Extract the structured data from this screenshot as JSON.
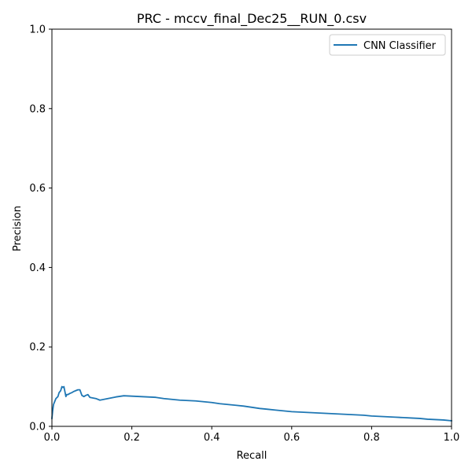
{
  "chart_data": {
    "type": "line",
    "title": "PRC - mccv_final_Dec25__RUN_0.csv",
    "xlabel": "Recall",
    "ylabel": "Precision",
    "xlim": [
      0,
      1
    ],
    "ylim": [
      0,
      1
    ],
    "xticks": [
      "0.0",
      "0.2",
      "0.4",
      "0.6",
      "0.8",
      "1.0"
    ],
    "yticks": [
      "0.0",
      "0.2",
      "0.4",
      "0.6",
      "0.8",
      "1.0"
    ],
    "grid": false,
    "legend_position": "top-right",
    "series": [
      {
        "name": "CNN Classifier",
        "color": "#1f77b4",
        "x": [
          0.0,
          0.002,
          0.004,
          0.006,
          0.008,
          0.01,
          0.012,
          0.015,
          0.018,
          0.022,
          0.025,
          0.028,
          0.03,
          0.032,
          0.035,
          0.037,
          0.04,
          0.045,
          0.05,
          0.055,
          0.06,
          0.065,
          0.07,
          0.075,
          0.08,
          0.085,
          0.09,
          0.095,
          0.1,
          0.11,
          0.12,
          0.14,
          0.16,
          0.18,
          0.2,
          0.22,
          0.24,
          0.26,
          0.28,
          0.3,
          0.32,
          0.34,
          0.36,
          0.38,
          0.4,
          0.42,
          0.44,
          0.46,
          0.48,
          0.5,
          0.52,
          0.54,
          0.56,
          0.58,
          0.6,
          0.62,
          0.64,
          0.66,
          0.68,
          0.7,
          0.72,
          0.74,
          0.76,
          0.78,
          0.8,
          0.82,
          0.84,
          0.86,
          0.88,
          0.9,
          0.92,
          0.94,
          0.96,
          0.98,
          1.0
        ],
        "y": [
          0.02,
          0.04,
          0.055,
          0.06,
          0.065,
          0.07,
          0.072,
          0.075,
          0.085,
          0.09,
          0.1,
          0.098,
          0.1,
          0.09,
          0.075,
          0.08,
          0.08,
          0.083,
          0.085,
          0.088,
          0.09,
          0.092,
          0.092,
          0.078,
          0.075,
          0.078,
          0.08,
          0.073,
          0.072,
          0.07,
          0.066,
          0.07,
          0.074,
          0.077,
          0.076,
          0.075,
          0.074,
          0.073,
          0.07,
          0.068,
          0.066,
          0.065,
          0.064,
          0.062,
          0.06,
          0.057,
          0.055,
          0.053,
          0.051,
          0.048,
          0.045,
          0.043,
          0.041,
          0.039,
          0.037,
          0.036,
          0.035,
          0.034,
          0.033,
          0.032,
          0.031,
          0.03,
          0.029,
          0.028,
          0.026,
          0.025,
          0.024,
          0.023,
          0.022,
          0.021,
          0.02,
          0.018,
          0.017,
          0.016,
          0.014
        ]
      }
    ]
  }
}
